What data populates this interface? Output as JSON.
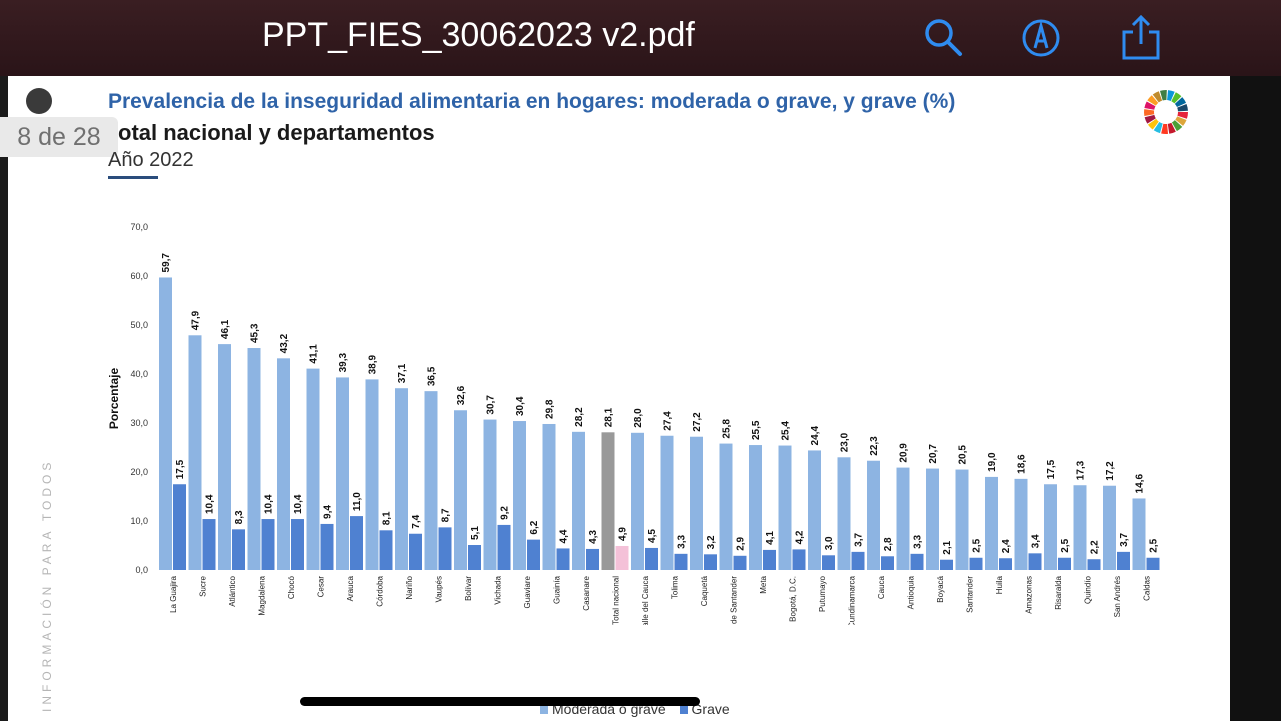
{
  "viewer": {
    "doc_title": "PPT_FIES_30062023 v2.pdf",
    "page_indicator": "8 de 28",
    "icons": [
      "search-icon",
      "markup-icon",
      "share-icon"
    ]
  },
  "slide": {
    "title": "Prevalencia de la inseguridad alimentaria en hogares: moderada o grave, y grave (%)",
    "subtitle": "otal nacional y departamentos",
    "year": "Año 2022",
    "side_text": "INFORMACIÓN PARA TODOS"
  },
  "colors": {
    "moderate": "#8db4e2",
    "grave": "#4f81d1",
    "total": "#999999",
    "title": "#2f63a8"
  },
  "chart_data": {
    "type": "bar",
    "title": "Prevalencia de la inseguridad alimentaria en hogares: moderada o grave, y grave (%)",
    "ylabel": "Porcentaje",
    "ylim": [
      0,
      70
    ],
    "yticks": [
      "0,0",
      "10,0",
      "20,0",
      "30,0",
      "40,0",
      "50,0",
      "60,0",
      "70,0"
    ],
    "highlight_category": "Total nacional",
    "categories": [
      "La Guajira",
      "Sucre",
      "Atlántico",
      "Magdalena",
      "Chocó",
      "Cesar",
      "Arauca",
      "Córdoba",
      "Nariño",
      "Vaupés",
      "Bolívar",
      "Vichada",
      "Guaviare",
      "Guainía",
      "Casanare",
      "Total nacional",
      "Valle del Cauca",
      "Tolima",
      "Caquetá",
      "Norte de Santander",
      "Meta",
      "Bogotá, D.C.",
      "Putumayo",
      "Cundinamarca",
      "Cauca",
      "Antioquia",
      "Boyacá",
      "Santander",
      "Huila",
      "Amazonas",
      "Risaralda",
      "Quindío",
      "San Andrés",
      "Caldas"
    ],
    "series": [
      {
        "name": "Moderada o grave",
        "values": [
          59.7,
          47.9,
          46.1,
          45.3,
          43.2,
          41.1,
          39.3,
          38.9,
          37.1,
          36.5,
          32.6,
          30.7,
          30.4,
          29.8,
          28.2,
          28.1,
          28.0,
          27.4,
          27.2,
          25.8,
          25.5,
          25.4,
          24.4,
          23.0,
          22.3,
          20.9,
          20.7,
          20.5,
          19.0,
          18.6,
          17.5,
          17.3,
          17.2,
          14.6
        ],
        "labels": [
          "59,7",
          "47,9",
          "46,1",
          "45,3",
          "43,2",
          "41,1",
          "39,3",
          "38,9",
          "37,1",
          "36,5",
          "32,6",
          "30,7",
          "30,4",
          "29,8",
          "28,2",
          "28,1",
          "28,0",
          "27,4",
          "27,2",
          "25,8",
          "25,5",
          "25,4",
          "24,4",
          "23,0",
          "22,3",
          "20,9",
          "20,7",
          "20,5",
          "19,0",
          "18,6",
          "17,5",
          "17,3",
          "17,2",
          "14,6"
        ]
      },
      {
        "name": "Grave",
        "values": [
          17.5,
          10.4,
          8.3,
          10.4,
          10.4,
          9.4,
          11.0,
          8.1,
          7.4,
          8.7,
          5.1,
          9.2,
          6.2,
          4.4,
          4.3,
          4.9,
          4.5,
          3.3,
          3.2,
          2.9,
          4.1,
          4.2,
          3.0,
          3.7,
          2.8,
          3.3,
          2.1,
          2.5,
          2.4,
          3.4,
          2.5,
          2.2,
          3.7,
          2.5
        ],
        "labels": [
          "17,5",
          "10,4",
          "8,3",
          "10,4",
          "10,4",
          "9,4",
          "11,0",
          "8,1",
          "7,4",
          "8,7",
          "5,1",
          "9,2",
          "6,2",
          "4,4",
          "4,3",
          "4,9",
          "4,5",
          "3,3",
          "3,2",
          "2,9",
          "4,1",
          "4,2",
          "3,0",
          "3,7",
          "2,8",
          "3,3",
          "2,1",
          "2,5",
          "2,4",
          "3,4",
          "2,5",
          "2,2",
          "3,7",
          "2,5"
        ]
      }
    ],
    "legend_position": "bottom"
  }
}
